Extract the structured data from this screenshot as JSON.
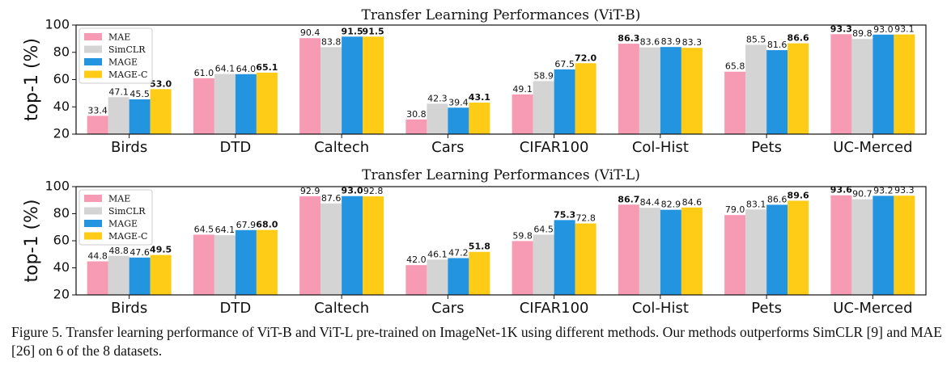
{
  "colors": {
    "MAE": "#f79ab4",
    "SimCLR": "#d4d4d4",
    "MAGE": "#2394e0",
    "MAGE-C": "#fecb16"
  },
  "chart_data": [
    {
      "type": "bar",
      "title": "Transfer Learning Performances (ViT-B)",
      "ylabel": "top-1 (%)",
      "xlabel": "",
      "ylim": [
        20,
        100
      ],
      "yticks": [
        "20",
        "40",
        "60",
        "80",
        "100"
      ],
      "legend": "top-left",
      "categories": [
        "Birds",
        "DTD",
        "Caltech",
        "Cars",
        "CIFAR100",
        "Col-Hist",
        "Pets",
        "UC-Merced"
      ],
      "series": [
        {
          "name": "MAE",
          "values": [
            33.4,
            61.0,
            90.4,
            30.8,
            49.1,
            86.3,
            65.8,
            93.3
          ],
          "labels": [
            "33.4",
            "61.0",
            "90.4",
            "30.8",
            "49.1",
            "86.3",
            "65.8",
            "93.3"
          ]
        },
        {
          "name": "SimCLR",
          "values": [
            47.1,
            64.1,
            83.8,
            42.3,
            58.9,
            83.6,
            85.5,
            89.8
          ],
          "labels": [
            "47.1",
            "64.1",
            "83.8",
            "42.3",
            "58.9",
            "83.6",
            "85.5",
            "89.8"
          ]
        },
        {
          "name": "MAGE",
          "values": [
            45.5,
            64.0,
            91.5,
            39.4,
            67.5,
            83.9,
            81.6,
            93.0
          ],
          "labels": [
            "45.5",
            "64.0",
            "91.5",
            "39.4",
            "67.5",
            "83.9",
            "81.6",
            "93.0"
          ]
        },
        {
          "name": "MAGE-C",
          "values": [
            53.0,
            65.1,
            91.5,
            43.1,
            72.0,
            83.3,
            86.6,
            93.1
          ],
          "labels": [
            "53.0",
            "65.1",
            "91.5",
            "43.1",
            "72.0",
            "83.3",
            "86.6",
            "93.1"
          ]
        }
      ],
      "bold_labels": [
        [
          3,
          0
        ],
        [
          3,
          1
        ],
        [
          2,
          2
        ],
        [
          3,
          2
        ],
        [
          3,
          3
        ],
        [
          3,
          4
        ],
        [
          0,
          5
        ],
        [
          3,
          6
        ],
        [
          0,
          7
        ]
      ]
    },
    {
      "type": "bar",
      "title": "Transfer Learning Performances (ViT-L)",
      "ylabel": "top-1 (%)",
      "xlabel": "",
      "ylim": [
        20,
        100
      ],
      "yticks": [
        "20",
        "40",
        "60",
        "80",
        "100"
      ],
      "legend": "top-left",
      "categories": [
        "Birds",
        "DTD",
        "Caltech",
        "Cars",
        "CIFAR100",
        "Col-Hist",
        "Pets",
        "UC-Merced"
      ],
      "series": [
        {
          "name": "MAE",
          "values": [
            44.8,
            64.5,
            92.9,
            42.0,
            59.8,
            86.7,
            79.0,
            93.6
          ],
          "labels": [
            "44.8",
            "64.5",
            "92.9",
            "42.0",
            "59.8",
            "86.7",
            "79.0",
            "93.6"
          ]
        },
        {
          "name": "SimCLR",
          "values": [
            48.8,
            64.1,
            87.6,
            46.1,
            64.5,
            84.4,
            83.1,
            90.7
          ],
          "labels": [
            "48.8",
            "64.1",
            "87.6",
            "46.1",
            "64.5",
            "84.4",
            "83.1",
            "90.7"
          ]
        },
        {
          "name": "MAGE",
          "values": [
            47.6,
            67.9,
            93.0,
            47.2,
            75.3,
            82.9,
            86.6,
            93.2
          ],
          "labels": [
            "47.6",
            "67.9",
            "93.0",
            "47.2",
            "75.3",
            "82.9",
            "86.6",
            "93.2"
          ]
        },
        {
          "name": "MAGE-C",
          "values": [
            49.5,
            68.0,
            92.8,
            51.8,
            72.8,
            84.6,
            89.6,
            93.3
          ],
          "labels": [
            "49.5",
            "68.0",
            "92.8",
            "51.8",
            "72.8",
            "84.6",
            "89.6",
            "93.3"
          ]
        }
      ],
      "bold_labels": [
        [
          3,
          0
        ],
        [
          3,
          1
        ],
        [
          2,
          2
        ],
        [
          3,
          3
        ],
        [
          2,
          4
        ],
        [
          0,
          5
        ],
        [
          3,
          6
        ],
        [
          0,
          7
        ]
      ]
    }
  ],
  "caption": "Figure 5. Transfer learning performance of ViT-B and ViT-L pre-trained on ImageNet-1K using different methods. Our methods outperforms SimCLR [9] and MAE [26] on 6 of the 8 datasets."
}
